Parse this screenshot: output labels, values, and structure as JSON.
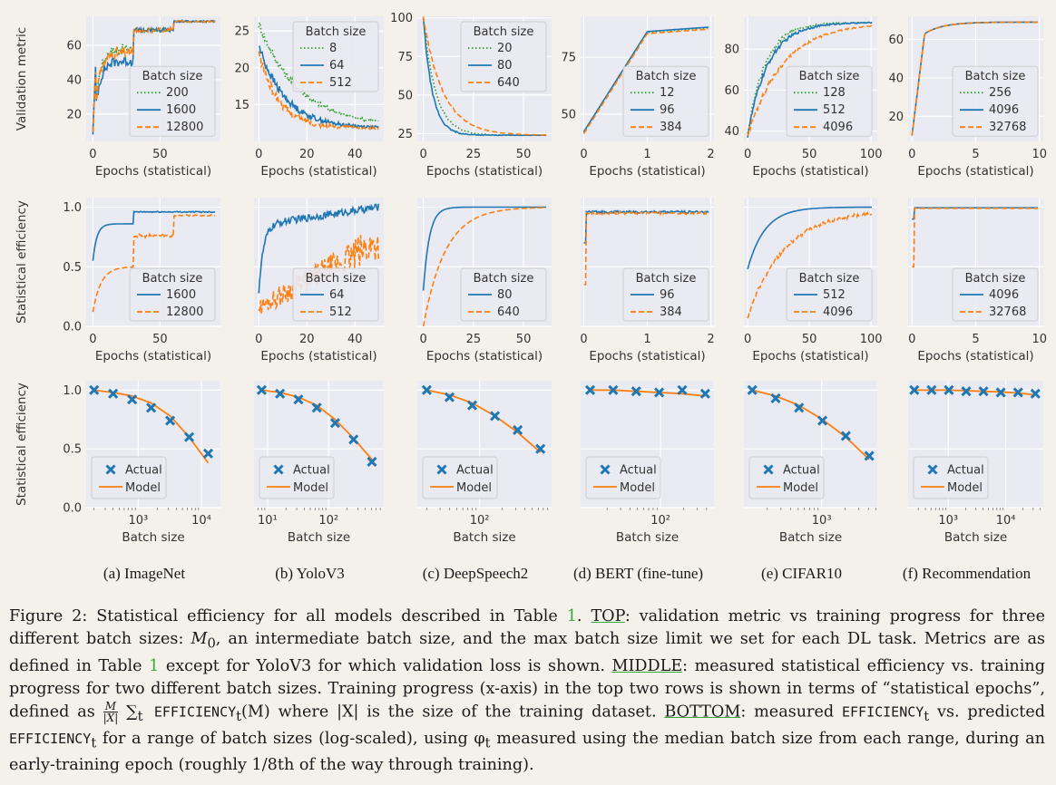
{
  "colors": {
    "blue": "#1f77b4",
    "orange": "#ff7f0e",
    "green": "#2ca02c",
    "panel": "#eaeaf2",
    "grid": "#ffffff",
    "page": "#f4f1ea"
  },
  "row_labels": {
    "top": "Validation metric",
    "middle": "Statistical efficiency",
    "bottom": "Statistical efficiency"
  },
  "panels": [
    {
      "caption": "(a) ImageNet",
      "top": {
        "xlabel": "Epochs (statistical)",
        "xlim": [
          -5,
          95
        ],
        "ylim": [
          4,
          77
        ],
        "xticks": [
          0,
          50
        ],
        "yticks": [
          20,
          40,
          60
        ],
        "legend": "center-right",
        "series": [
          {
            "label": "200",
            "color": "green",
            "dash": "dot",
            "shape": "imagenet-small",
            "start": 10
          },
          {
            "label": "1600",
            "color": "blue",
            "dash": "solid",
            "shape": "imagenet-mid",
            "start": 10
          },
          {
            "label": "12800",
            "color": "orange",
            "dash": "dash",
            "shape": "imagenet-big",
            "start": 10
          }
        ]
      },
      "mid": {
        "xlabel": "Epochs (statistical)",
        "xlim": [
          -5,
          95
        ],
        "ylim": [
          0,
          1.08
        ],
        "xticks": [
          0,
          50
        ],
        "yticks": [
          0.0,
          0.5,
          1.0
        ],
        "series": [
          {
            "label": "1600",
            "color": "blue",
            "dash": "solid",
            "shape": "eff-imagenet-high"
          },
          {
            "label": "12800",
            "color": "orange",
            "dash": "dash",
            "shape": "eff-imagenet-low"
          }
        ]
      },
      "bot": {
        "xlabel": "Batch size",
        "log": true,
        "xlim": [
          150,
          20000
        ],
        "xticks": [
          1000,
          10000
        ],
        "xticklabels": [
          "10³",
          "10⁴"
        ],
        "actual": [
          [
            200,
            1.0
          ],
          [
            400,
            0.97
          ],
          [
            800,
            0.92
          ],
          [
            1600,
            0.85
          ],
          [
            3200,
            0.74
          ],
          [
            6400,
            0.6
          ],
          [
            12800,
            0.46
          ]
        ],
        "model": [
          [
            200,
            1.0
          ],
          [
            400,
            0.98
          ],
          [
            800,
            0.95
          ],
          [
            1600,
            0.89
          ],
          [
            3200,
            0.78
          ],
          [
            6400,
            0.6
          ],
          [
            12800,
            0.38
          ]
        ]
      }
    },
    {
      "caption": "(b) YoloV3",
      "top": {
        "xlabel": "Epochs (statistical)",
        "xlim": [
          -2,
          52
        ],
        "ylim": [
          10,
          27
        ],
        "xticks": [
          0,
          20,
          40
        ],
        "yticks": [
          15,
          20,
          25
        ],
        "legend": "top-right",
        "series": [
          {
            "label": "8",
            "color": "green",
            "dash": "dot",
            "shape": "yolo",
            "start": 26,
            "rate": 0.06,
            "end": 12
          },
          {
            "label": "64",
            "color": "blue",
            "dash": "solid",
            "shape": "yolo",
            "start": 23,
            "rate": 0.09,
            "end": 11.8
          },
          {
            "label": "512",
            "color": "orange",
            "dash": "dash",
            "shape": "yolo",
            "start": 22,
            "rate": 0.12,
            "end": 11.8
          }
        ]
      },
      "mid": {
        "xlabel": "Epochs (statistical)",
        "xlim": [
          -2,
          52
        ],
        "ylim": [
          0,
          1.08
        ],
        "xticks": [
          0,
          20,
          40
        ],
        "yticks": [],
        "series": [
          {
            "label": "64",
            "color": "blue",
            "dash": "solid",
            "shape": "eff-yolo-high"
          },
          {
            "label": "512",
            "color": "orange",
            "dash": "dash",
            "shape": "eff-yolo-low"
          }
        ]
      },
      "bot": {
        "xlabel": "Batch size",
        "log": true,
        "xlim": [
          6,
          800
        ],
        "xticks": [
          10,
          100
        ],
        "xticklabels": [
          "10¹",
          "10²"
        ],
        "actual": [
          [
            8,
            1.0
          ],
          [
            16,
            0.97
          ],
          [
            32,
            0.92
          ],
          [
            64,
            0.85
          ],
          [
            128,
            0.72
          ],
          [
            256,
            0.58
          ],
          [
            512,
            0.39
          ]
        ],
        "model": [
          [
            8,
            1.0
          ],
          [
            16,
            0.98
          ],
          [
            32,
            0.94
          ],
          [
            64,
            0.87
          ],
          [
            128,
            0.75
          ],
          [
            256,
            0.59
          ],
          [
            512,
            0.41
          ]
        ]
      }
    },
    {
      "caption": "(c) DeepSpeech2",
      "top": {
        "xlabel": "Epochs (statistical)",
        "xlim": [
          -3,
          64
        ],
        "ylim": [
          20,
          101
        ],
        "xticks": [
          0,
          25,
          50
        ],
        "yticks": [
          25,
          50,
          75,
          100
        ],
        "legend": "top-right",
        "series": [
          {
            "label": "20",
            "color": "green",
            "dash": "dot",
            "shape": "ds2",
            "rate": 0.16
          },
          {
            "label": "80",
            "color": "blue",
            "dash": "solid",
            "shape": "ds2",
            "rate": 0.22
          },
          {
            "label": "640",
            "color": "orange",
            "dash": "dash",
            "shape": "ds2",
            "rate": 0.1
          }
        ]
      },
      "mid": {
        "xlabel": "Epochs (statistical)",
        "xlim": [
          -3,
          64
        ],
        "ylim": [
          0,
          1.08
        ],
        "xticks": [
          0,
          25,
          50
        ],
        "yticks": [],
        "series": [
          {
            "label": "80",
            "color": "blue",
            "dash": "solid",
            "shape": "eff-ds2-high"
          },
          {
            "label": "640",
            "color": "orange",
            "dash": "dash",
            "shape": "eff-ds2-low"
          }
        ]
      },
      "bot": {
        "xlabel": "Batch size",
        "log": true,
        "xlim": [
          15,
          900
        ],
        "xticks": [
          100
        ],
        "xticklabels": [
          "10²"
        ],
        "actual": [
          [
            20,
            1.0
          ],
          [
            40,
            0.94
          ],
          [
            80,
            0.87
          ],
          [
            160,
            0.78
          ],
          [
            320,
            0.66
          ],
          [
            640,
            0.5
          ]
        ],
        "model": [
          [
            20,
            1.0
          ],
          [
            40,
            0.96
          ],
          [
            80,
            0.89
          ],
          [
            160,
            0.78
          ],
          [
            320,
            0.64
          ],
          [
            640,
            0.47
          ]
        ]
      }
    },
    {
      "caption": "(d) BERT (fine-tune)",
      "top": {
        "xlabel": "Epochs (statistical)",
        "xlim": [
          -0.05,
          2.05
        ],
        "ylim": [
          38,
          93
        ],
        "xticks": [
          0,
          1,
          2
        ],
        "yticks": [
          50,
          75
        ],
        "legend": "center-right",
        "series": [
          {
            "label": "12",
            "color": "green",
            "dash": "dot",
            "shape": "bert",
            "jitter": 0
          },
          {
            "label": "96",
            "color": "blue",
            "dash": "solid",
            "shape": "bert",
            "jitter": 0.3
          },
          {
            "label": "384",
            "color": "orange",
            "dash": "dash",
            "shape": "bert",
            "jitter": -0.6
          }
        ]
      },
      "mid": {
        "xlabel": "Epochs (statistical)",
        "xlim": [
          -0.05,
          2.05
        ],
        "ylim": [
          0,
          1.08
        ],
        "xticks": [
          0,
          1,
          2
        ],
        "yticks": [],
        "series": [
          {
            "label": "96",
            "color": "blue",
            "dash": "solid",
            "shape": "eff-bert-high"
          },
          {
            "label": "384",
            "color": "orange",
            "dash": "dash",
            "shape": "eff-bert-low"
          }
        ]
      },
      "bot": {
        "xlabel": "Batch size",
        "log": true,
        "xlim": [
          9,
          500
        ],
        "xticks": [
          100
        ],
        "xticklabels": [
          "10²"
        ],
        "actual": [
          [
            12,
            1.0
          ],
          [
            24,
            1.0
          ],
          [
            48,
            0.99
          ],
          [
            96,
            0.98
          ],
          [
            192,
            1.0
          ],
          [
            384,
            0.97
          ]
        ],
        "model": [
          [
            12,
            1.0
          ],
          [
            24,
            1.0
          ],
          [
            48,
            0.99
          ],
          [
            96,
            0.98
          ],
          [
            192,
            0.97
          ],
          [
            384,
            0.95
          ]
        ]
      }
    },
    {
      "caption": "(e) CIFAR10",
      "top": {
        "xlabel": "Epochs (statistical)",
        "xlim": [
          -3,
          105
        ],
        "ylim": [
          35,
          96
        ],
        "xticks": [
          0,
          50,
          100
        ],
        "yticks": [
          40,
          60,
          80
        ],
        "legend": "center-right",
        "series": [
          {
            "label": "128",
            "color": "green",
            "dash": "dot",
            "shape": "cifar",
            "rate": 0.07
          },
          {
            "label": "512",
            "color": "blue",
            "dash": "solid",
            "shape": "cifar",
            "rate": 0.06
          },
          {
            "label": "4096",
            "color": "orange",
            "dash": "dash",
            "shape": "cifar",
            "rate": 0.035
          }
        ]
      },
      "mid": {
        "xlabel": "Epochs (statistical)",
        "xlim": [
          -3,
          105
        ],
        "ylim": [
          0,
          1.08
        ],
        "xticks": [
          0,
          50,
          100
        ],
        "yticks": [],
        "series": [
          {
            "label": "512",
            "color": "blue",
            "dash": "solid",
            "shape": "eff-cifar-high"
          },
          {
            "label": "4096",
            "color": "orange",
            "dash": "dash",
            "shape": "eff-cifar-low"
          }
        ]
      },
      "bot": {
        "xlabel": "Batch size",
        "log": true,
        "xlim": [
          100,
          5200
        ],
        "xticks": [
          1000
        ],
        "xticklabels": [
          "10³"
        ],
        "actual": [
          [
            128,
            1.0
          ],
          [
            256,
            0.93
          ],
          [
            512,
            0.85
          ],
          [
            1024,
            0.74
          ],
          [
            2048,
            0.61
          ],
          [
            4096,
            0.44
          ]
        ],
        "model": [
          [
            128,
            1.0
          ],
          [
            256,
            0.95
          ],
          [
            512,
            0.87
          ],
          [
            1024,
            0.75
          ],
          [
            2048,
            0.6
          ],
          [
            4096,
            0.41
          ]
        ]
      }
    },
    {
      "caption": "(f) Recommendation",
      "top": {
        "xlabel": "Epochs (statistical)",
        "xlim": [
          -0.3,
          10.3
        ],
        "ylim": [
          7,
          72
        ],
        "xticks": [
          0,
          5,
          10
        ],
        "yticks": [
          20,
          40,
          60
        ],
        "legend": "center-right",
        "series": [
          {
            "label": "256",
            "color": "green",
            "dash": "dot",
            "shape": "rec"
          },
          {
            "label": "4096",
            "color": "blue",
            "dash": "solid",
            "shape": "rec"
          },
          {
            "label": "32768",
            "color": "orange",
            "dash": "dash",
            "shape": "rec"
          }
        ]
      },
      "mid": {
        "xlabel": "Epochs (statistical)",
        "xlim": [
          -0.3,
          10.3
        ],
        "ylim": [
          0,
          1.08
        ],
        "xticks": [
          0,
          5,
          10
        ],
        "yticks": [],
        "series": [
          {
            "label": "4096",
            "color": "blue",
            "dash": "solid",
            "shape": "eff-rec-high"
          },
          {
            "label": "32768",
            "color": "orange",
            "dash": "dash",
            "shape": "eff-rec-low"
          }
        ]
      },
      "bot": {
        "xlabel": "Batch size",
        "log": true,
        "xlim": [
          200,
          45000
        ],
        "xticks": [
          1000,
          10000
        ],
        "xticklabels": [
          "10³",
          "10⁴"
        ],
        "actual": [
          [
            256,
            1.0
          ],
          [
            512,
            1.0
          ],
          [
            1024,
            1.0
          ],
          [
            2048,
            0.99
          ],
          [
            4096,
            0.99
          ],
          [
            8192,
            0.98
          ],
          [
            16384,
            0.98
          ],
          [
            32768,
            0.97
          ]
        ],
        "model": [
          [
            256,
            1.0
          ],
          [
            512,
            1.0
          ],
          [
            1024,
            1.0
          ],
          [
            2048,
            0.995
          ],
          [
            4096,
            0.99
          ],
          [
            8192,
            0.985
          ],
          [
            16384,
            0.975
          ],
          [
            32768,
            0.96
          ]
        ]
      }
    }
  ],
  "legend_title": "Batch size",
  "legend_actual": "Actual",
  "legend_model": "Model",
  "chart_data": {
    "type": "line",
    "title": "",
    "grid": true,
    "caption_ref": "Figure 2",
    "rows": [
      "Validation metric vs epochs (statistical)",
      "Statistical efficiency vs epochs (statistical)",
      "Statistical efficiency vs batch size (log)"
    ],
    "efficiency_yticks": [
      0.0,
      0.5,
      1.0
    ]
  },
  "caption": {
    "p1": "Figure 2: Statistical efficiency for all models described in Table ",
    "ref": "1",
    "p2": ". ",
    "top_label": "TOP",
    "p3": ": validation metric vs training progress for three different batch sizes: ",
    "m0": "M",
    "m0_sub": "0",
    "p4": ", an intermediate batch size, and the max batch size limit we set for each DL task. Metrics are as defined in Table ",
    "p5": " except for YoloV3 for which validation loss is shown. ",
    "middle_label": "MIDDLE",
    "p6": ": measured statistical efficiency vs. training progress for two different batch sizes. Training progress (x-axis) in the top two rows is shown in terms of “statistical epochs”, defined as ",
    "frac_num": "M",
    "frac_den": "|X|",
    "sum": " ∑",
    "sum_sub": "t",
    "eff": " EFFICIENCY",
    "eff_sub": "t",
    "p7": "(M) where |X| is the size of the training dataset. ",
    "bottom_label": "BOTTOM",
    "p8": ": measured ",
    "eff2": "EFFICIENCY",
    "eff2_sub": "t",
    "p9": " vs. predicted ",
    "eff3": "EFFICIENCY",
    "eff3_sub": "t",
    "p10": " for a range of batch sizes (log-scaled), using φ",
    "phi_sub": "t",
    "p11": " measured using the median batch size from each range, during an early-training epoch (roughly 1/8th of the way through training)."
  }
}
